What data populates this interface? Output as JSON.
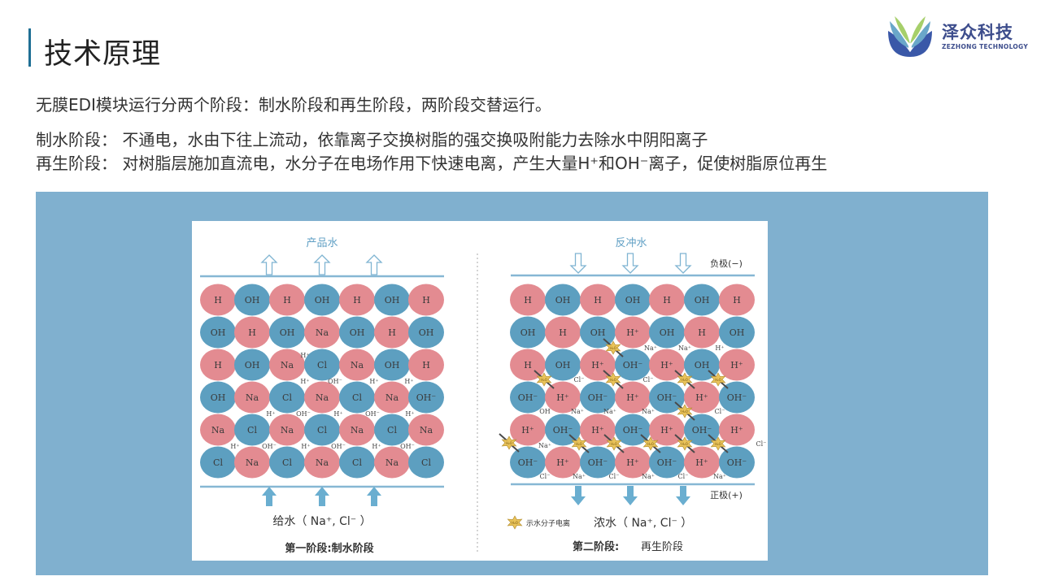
{
  "header": {
    "title": "技术原理",
    "logo": {
      "name": "泽众科技",
      "subtitle": "ZEZHONG TECHNOLOGY"
    }
  },
  "body": {
    "intro": "无膜EDI模块运行分两个阶段：制水阶段和再生阶段，两阶段交替运行。",
    "stage1": "制水阶段： 不通电，水由下往上流动，依靠离子交换树脂的强交换吸附能力去除水中阴阳离子",
    "stage2": "再生阶段： 对树脂层施加直流电，水分子在电场作用下快速电离，产生大量H⁺和OH⁻离子，促使树脂原位再生"
  },
  "diagram": {
    "colors": {
      "cation": "#e38b91",
      "anion": "#5d9fc0",
      "panel": "#80b0cf",
      "star": "#e9c35a"
    },
    "left": {
      "top_label": "产品水",
      "feed_label": "给水（  Na⁺, Cl⁻  ）",
      "caption": "第一阶段:制水阶段",
      "grid": [
        [
          "H",
          "OH",
          "H",
          "OH",
          "H",
          "OH",
          "H"
        ],
        [
          "OH",
          "H",
          "OH",
          "Na",
          "OH",
          "H",
          "OH"
        ],
        [
          "H",
          "OH",
          "Na",
          "Cl",
          "Na",
          "OH",
          "H"
        ],
        [
          "OH",
          "Na",
          "Cl",
          "Na",
          "Cl",
          "Na",
          "OH⁻"
        ],
        [
          "Na",
          "Cl",
          "Na",
          "Cl",
          "Na",
          "Cl",
          "Na"
        ],
        [
          "Cl",
          "Na",
          "Cl",
          "Na",
          "Cl",
          "Na",
          "Cl"
        ]
      ],
      "small_labels": [
        "H⁺",
        "H⁺",
        "OH⁻",
        "H⁺",
        "H⁺",
        "H⁺",
        "OH⁻",
        "H⁺",
        "OH⁻",
        "H⁺",
        "H⁺",
        "OH⁻",
        "H⁺",
        "OH⁻",
        "H⁺",
        "OH⁻"
      ]
    },
    "right": {
      "top_label": "反冲水",
      "negative_label": "负极(−)",
      "positive_label": "正极(+)",
      "legend_label": "示水分子电离",
      "star_text": "H₂O",
      "concentrate_label": "浓水（  Na⁺, Cl⁻  ）",
      "caption_bold": "第二阶段:",
      "caption": "再生阶段",
      "grid": [
        [
          "H",
          "OH",
          "H",
          "OH",
          "H",
          "OH",
          "H"
        ],
        [
          "OH",
          "H",
          "OH",
          "H⁺",
          "OH",
          "H",
          "OH"
        ],
        [
          "H",
          "OH",
          "H⁺",
          "OH⁻",
          "H⁺",
          "OH",
          "H⁺"
        ],
        [
          "OH⁻",
          "H⁺",
          "OH⁻",
          "H⁺",
          "OH⁻",
          "H⁺",
          "OH⁻"
        ],
        [
          "H⁺",
          "OH⁻",
          "H⁺",
          "OH⁻",
          "H⁺",
          "OH⁻",
          "H⁺"
        ],
        [
          "OH⁻",
          "H⁺",
          "OH⁻",
          "H⁺",
          "OH⁻",
          "H⁺",
          "OH⁻"
        ]
      ],
      "small_labels": [
        "Na⁺",
        "Na⁺",
        "H⁺",
        "Cl⁻",
        "Cl⁻",
        "OH",
        "Na⁺",
        "Na⁺",
        "Na⁺",
        "Cl⁻",
        "Na⁺",
        "Cl⁻",
        "Cl⁻",
        "Na⁺",
        "Cl⁻",
        "Na⁺",
        "Cl⁻",
        "Na⁺"
      ]
    }
  }
}
